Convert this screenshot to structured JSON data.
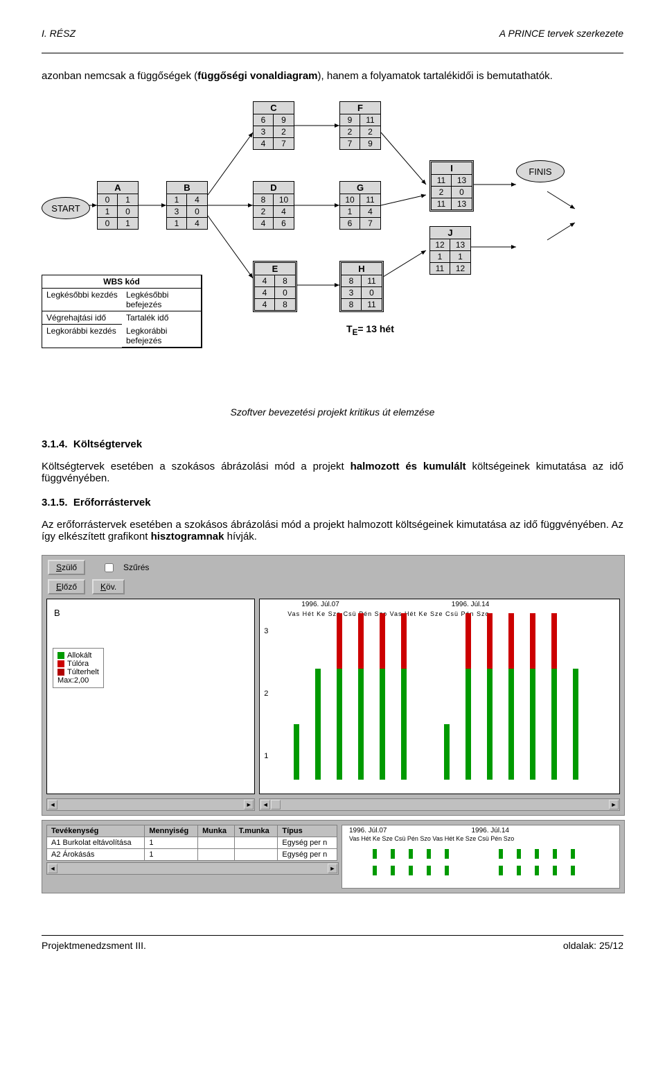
{
  "header": {
    "left": "I. RÉSZ",
    "right": "A PRINCE tervek szerkezete"
  },
  "intro": {
    "pre": "azonban nemcsak a függőségek (",
    "bold": "függőségi vonaldiagram",
    "post": "), hanem a folyamatok tartalékidői is bemutathatók."
  },
  "diagram": {
    "start": "START",
    "finis": "FINIS",
    "nodes": {
      "A": {
        "t": "A",
        "r": [
          "0",
          "1",
          "1",
          "0",
          "0",
          "1"
        ]
      },
      "B": {
        "t": "B",
        "r": [
          "1",
          "4",
          "3",
          "0",
          "1",
          "4"
        ]
      },
      "C": {
        "t": "C",
        "r": [
          "6",
          "9",
          "3",
          "2",
          "4",
          "7"
        ]
      },
      "D": {
        "t": "D",
        "r": [
          "8",
          "10",
          "2",
          "4",
          "4",
          "6"
        ]
      },
      "E": {
        "t": "E",
        "r": [
          "4",
          "8",
          "4",
          "0",
          "4",
          "8"
        ]
      },
      "F": {
        "t": "F",
        "r": [
          "9",
          "11",
          "2",
          "2",
          "7",
          "9"
        ]
      },
      "G": {
        "t": "G",
        "r": [
          "10",
          "11",
          "1",
          "4",
          "6",
          "7"
        ]
      },
      "H": {
        "t": "H",
        "r": [
          "8",
          "11",
          "3",
          "0",
          "8",
          "11"
        ]
      },
      "I": {
        "t": "I",
        "r": [
          "11",
          "13",
          "2",
          "0",
          "11",
          "13"
        ]
      },
      "J": {
        "t": "J",
        "r": [
          "12",
          "13",
          "1",
          "1",
          "11",
          "12"
        ]
      }
    },
    "legend": {
      "title": "WBS kód",
      "c": [
        "Legkésőbbi kezdés",
        "Legkésőbbi befejezés",
        "Végrehajtási idő",
        "Tartalék idő",
        "Legkorábbi kezdés",
        "Legkorábbi befejezés"
      ]
    },
    "te_label": "T",
    "te_sub": "E",
    "te_val": "= 13 hét"
  },
  "caption": "Szoftver bevezetési projekt kritikus út elemzése",
  "s314": {
    "num": "3.1.4.",
    "title": "Költségtervek",
    "p_pre": "Költségtervek esetében a szokásos ábrázolási mód a projekt ",
    "p_bold": "halmozott és kumulált",
    "p_post": " költségeinek kimutatása az idő függvényében."
  },
  "s315": {
    "num": "3.1.5.",
    "title": "Erőforrástervek",
    "p_pre": "Az erőforrástervek esetében a szokásos ábrázolási mód a projekt halmozott költségeinek kimutatása az idő függvényében. Az így elkészített grafikont ",
    "p_bold": "hisztogramnak",
    "p_post": " hívják."
  },
  "shot": {
    "szulo": "Szülő",
    "szures": "Szűrés",
    "elozo": "Előző",
    "kov": "Köv.",
    "b_label": "B",
    "legend": {
      "a": "Allokált",
      "t": "Túlóra",
      "tt": "Túlterhelt",
      "max": "Max:2,00"
    },
    "colors": {
      "allok": "#009a00",
      "tulora": "#cc0000",
      "tult": "#b00000",
      "bg": "#b7b7b7",
      "panel": "#ffffff"
    },
    "axis_y": [
      "3",
      "2",
      "1"
    ],
    "dates": {
      "d1": "1996. Júl.07",
      "d2": "1996. Júl.14",
      "days": "Vas Hét Ke Sze Csü Pén Szo Vas Hét Ke Sze Csü Pén Szo"
    },
    "bars": [
      {
        "g": 1,
        "r": 0
      },
      {
        "g": 2,
        "r": 0
      },
      {
        "g": 2,
        "r": 1
      },
      {
        "g": 2,
        "r": 1
      },
      {
        "g": 2,
        "r": 1
      },
      {
        "g": 2,
        "r": 1
      },
      {
        "g": 0,
        "r": 0
      },
      {
        "g": 1,
        "r": 0
      },
      {
        "g": 2,
        "r": 1
      },
      {
        "g": 2,
        "r": 1
      },
      {
        "g": 2,
        "r": 1
      },
      {
        "g": 2,
        "r": 1
      },
      {
        "g": 2,
        "r": 1
      },
      {
        "g": 2,
        "r": 0
      }
    ]
  },
  "shot2": {
    "cols": [
      "Tevékenység",
      "Mennyiség",
      "Munka",
      "T.munka",
      "Típus"
    ],
    "rows": [
      [
        "A1 Burkolat eltávolítása",
        "1",
        "",
        "",
        "Egység per n"
      ],
      [
        "A2 Árokásás",
        "1",
        "",
        "",
        "Egység per n"
      ]
    ],
    "dates": {
      "d1": "1996. Júl.07",
      "d2": "1996. Júl.14",
      "days": "Vas Hét Ke Sze Csü Pén Szo Vas Hét Ke Sze Csü Pén Szo"
    },
    "bar_color": "#009a00"
  },
  "footer": {
    "left": "Projektmenedzsment III.",
    "right": "oldalak: 25/12"
  }
}
